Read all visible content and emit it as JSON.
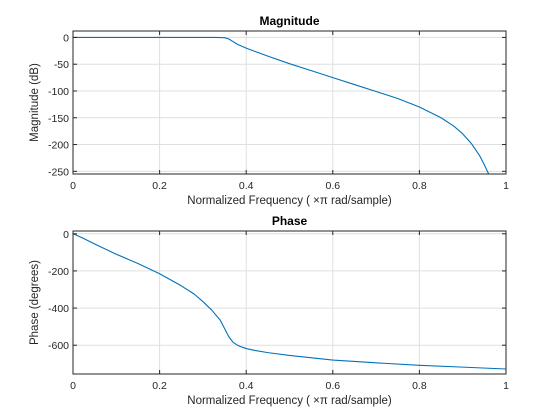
{
  "chart_data": [
    {
      "type": "line",
      "title": "Magnitude",
      "xlabel": "Normalized  Frequency    ( ×π  rad/sample)",
      "ylabel": "Magnitude (dB)",
      "xlim": [
        0,
        1
      ],
      "ylim": [
        -255,
        12
      ],
      "xticks": [
        0,
        0.2,
        0.4,
        0.6,
        0.8,
        1
      ],
      "xtick_labels": [
        "0",
        "0.2",
        "0.4",
        "0.6",
        "0.8",
        "1"
      ],
      "yticks": [
        0,
        -50,
        -100,
        -150,
        -200,
        -250
      ],
      "ytick_labels": [
        "0",
        "-50",
        "-100",
        "-150",
        "-200",
        "-250"
      ],
      "grid": true,
      "series": [
        {
          "color": "#0072bd",
          "x": [
            0,
            0.05,
            0.1,
            0.15,
            0.2,
            0.25,
            0.3,
            0.33,
            0.35,
            0.36,
            0.37,
            0.38,
            0.4,
            0.45,
            0.5,
            0.55,
            0.6,
            0.65,
            0.7,
            0.75,
            0.8,
            0.85,
            0.88,
            0.9,
            0.92,
            0.94,
            0.95,
            0.96
          ],
          "y": [
            0,
            0,
            0,
            0,
            0,
            0,
            0,
            0,
            -0.5,
            -3,
            -8,
            -13,
            -20,
            -35,
            -49,
            -62,
            -75,
            -88,
            -101,
            -114,
            -130,
            -150,
            -166,
            -180,
            -198,
            -222,
            -238,
            -255
          ]
        }
      ]
    },
    {
      "type": "line",
      "title": "Phase",
      "xlabel": "Normalized  Frequency    ( ×π  rad/sample)",
      "ylabel": "Phase (degrees)",
      "xlim": [
        0,
        1
      ],
      "ylim": [
        -755,
        15
      ],
      "xticks": [
        0,
        0.2,
        0.4,
        0.6,
        0.8,
        1
      ],
      "xtick_labels": [
        "0",
        "0.2",
        "0.4",
        "0.6",
        "0.8",
        "1"
      ],
      "yticks": [
        0,
        -200,
        -400,
        -600
      ],
      "ytick_labels": [
        "0",
        "-200",
        "-400",
        "-600"
      ],
      "grid": true,
      "series": [
        {
          "color": "#0072bd",
          "x": [
            0,
            0.02,
            0.05,
            0.1,
            0.15,
            0.2,
            0.25,
            0.28,
            0.3,
            0.32,
            0.34,
            0.35,
            0.36,
            0.37,
            0.38,
            0.39,
            0.4,
            0.42,
            0.45,
            0.5,
            0.6,
            0.7,
            0.8,
            0.9,
            1.0
          ],
          "y": [
            0,
            -20,
            -55,
            -110,
            -160,
            -215,
            -280,
            -325,
            -365,
            -410,
            -465,
            -510,
            -555,
            -585,
            -600,
            -610,
            -618,
            -628,
            -640,
            -655,
            -680,
            -695,
            -708,
            -718,
            -728
          ]
        }
      ]
    }
  ]
}
